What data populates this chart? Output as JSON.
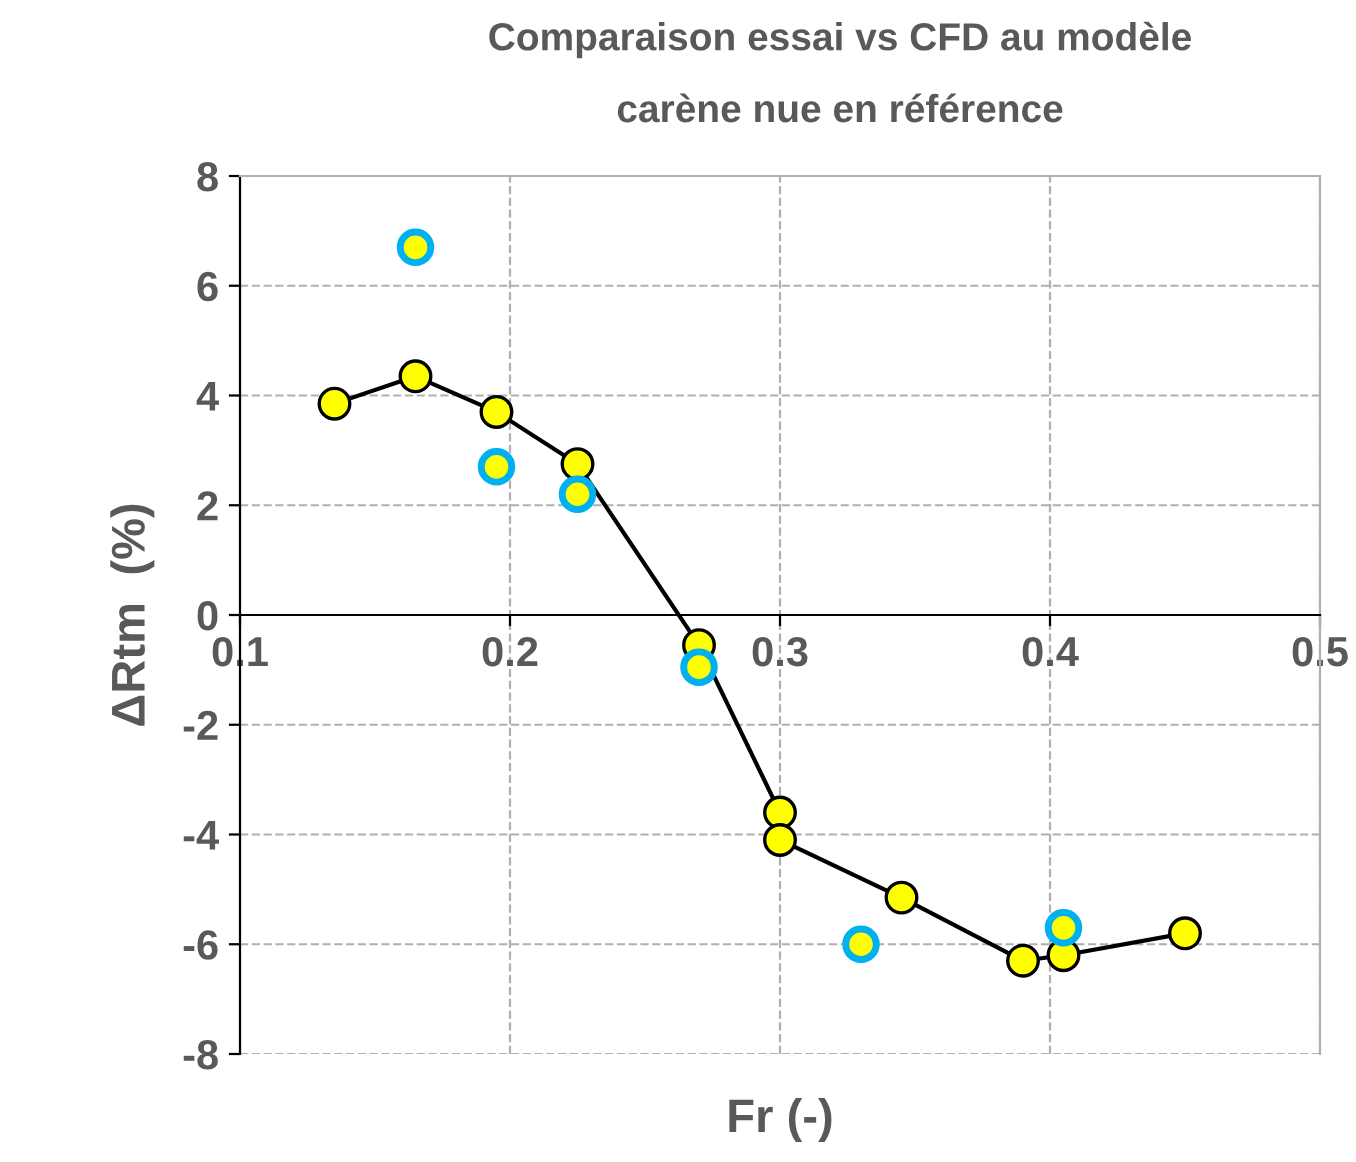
{
  "chart_data": {
    "type": "line",
    "title": "Comparaison essai vs CFD au modèle",
    "subtitle": "carène nue en référence",
    "xlabel": "Fr (-)",
    "ylabel": "ΔRtm  (%)",
    "series": [
      {
        "color": "#000000",
        "marker": "circle",
        "x": [
          0.135,
          0.165,
          0.195,
          0.225,
          0.27,
          0.3,
          0.3,
          0.345,
          0.39,
          0.405,
          0.45
        ],
        "values": [
          3.85,
          4.35,
          3.7,
          2.75,
          -0.55,
          -3.6,
          -4.1,
          -5.15,
          -6.3,
          -6.2,
          -5.8
        ]
      },
      {
        "type": "scatter",
        "color": "#00b0f0",
        "marker": "circle",
        "x": [
          0.165,
          0.195,
          0.225,
          0.27,
          0.33,
          0.405
        ],
        "values": [
          6.7,
          2.7,
          2.2,
          -0.95,
          -6.0,
          -5.7
        ]
      }
    ],
    "xlim": [
      0.1,
      0.5
    ],
    "xticks": [
      0.1,
      0.2,
      0.3,
      0.4,
      0.5
    ],
    "ylim": [
      -8,
      8
    ],
    "yticks": [
      {
        "value": -8,
        "label": "-8"
      },
      {
        "value": -6,
        "label": "-6"
      },
      {
        "value": -4,
        "label": "-4"
      },
      {
        "value": -2,
        "label": "-2"
      },
      0,
      2,
      4,
      6,
      8
    ],
    "grid": true
  }
}
